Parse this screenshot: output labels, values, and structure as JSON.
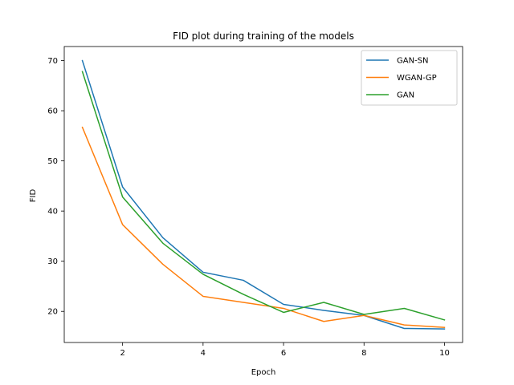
{
  "chart_data": {
    "type": "line",
    "title": "FID plot during training of the models",
    "xlabel": "Epoch",
    "ylabel": "FID",
    "x": [
      1,
      2,
      3,
      4,
      5,
      6,
      7,
      8,
      9,
      10
    ],
    "xlim": [
      0.55,
      10.45
    ],
    "ylim": [
      13.8,
      72.8
    ],
    "xticks": [
      2,
      4,
      6,
      8,
      10
    ],
    "yticks": [
      20,
      30,
      40,
      50,
      60,
      70
    ],
    "grid": false,
    "legend_position": "top-right",
    "series": [
      {
        "name": "GAN-SN",
        "color": "#1f77b4",
        "values": [
          70.0,
          44.8,
          34.7,
          27.8,
          26.2,
          21.4,
          20.2,
          19.2,
          16.6,
          16.5
        ]
      },
      {
        "name": "WGAN-GP",
        "color": "#ff7f0e",
        "values": [
          56.7,
          37.3,
          29.4,
          23.0,
          21.8,
          20.6,
          18.0,
          19.2,
          17.3,
          16.8
        ]
      },
      {
        "name": "GAN",
        "color": "#2ca02c",
        "values": [
          67.8,
          42.8,
          33.6,
          27.4,
          23.4,
          19.8,
          21.8,
          19.4,
          20.6,
          18.3
        ]
      }
    ]
  }
}
